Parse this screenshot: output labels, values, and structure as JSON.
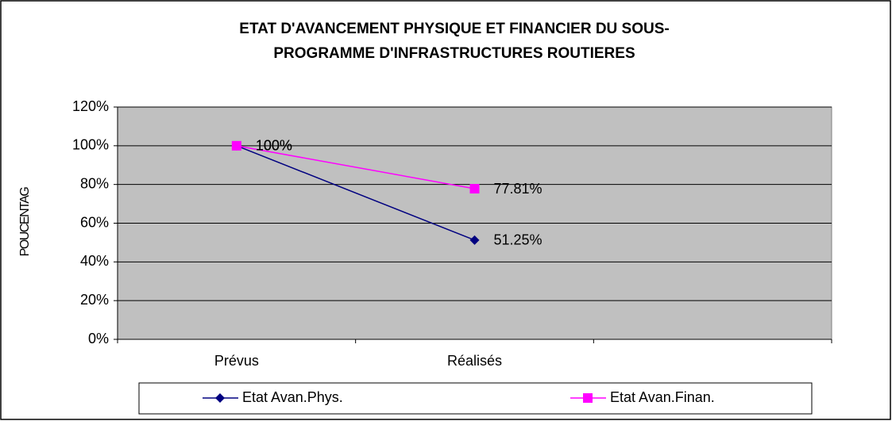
{
  "chart_data": {
    "type": "line",
    "title": [
      "ETAT D'AVANCEMENT PHYSIQUE ET FINANCIER DU SOUS-",
      "PROGRAMME D'INFRASTRUCTURES ROUTIERES"
    ],
    "ylabel": "POUCENTAG",
    "categories": [
      "Prévus",
      "Réalisés",
      null
    ],
    "series": [
      {
        "name": "Etat Avan.Phys.",
        "color": "#000080",
        "marker": "diamond",
        "values": [
          100,
          51.25,
          null
        ],
        "value_labels": [
          "100%",
          "51.25%",
          null
        ]
      },
      {
        "name": "Etat Avan.Finan.",
        "color": "#ff00ff",
        "marker": "square",
        "values": [
          100,
          77.81,
          null
        ],
        "value_labels": [
          "100%",
          "77.81%",
          null
        ]
      }
    ],
    "ylim": [
      0,
      120
    ],
    "yticks": [
      {
        "value": 0,
        "label": "0%"
      },
      {
        "value": 20,
        "label": "20%"
      },
      {
        "value": 40,
        "label": "40%"
      },
      {
        "value": 60,
        "label": "60%"
      },
      {
        "value": 80,
        "label": "80%"
      },
      {
        "value": 100,
        "label": "100%"
      },
      {
        "value": 120,
        "label": "120%"
      }
    ],
    "grid": true,
    "legend": "bottom"
  }
}
